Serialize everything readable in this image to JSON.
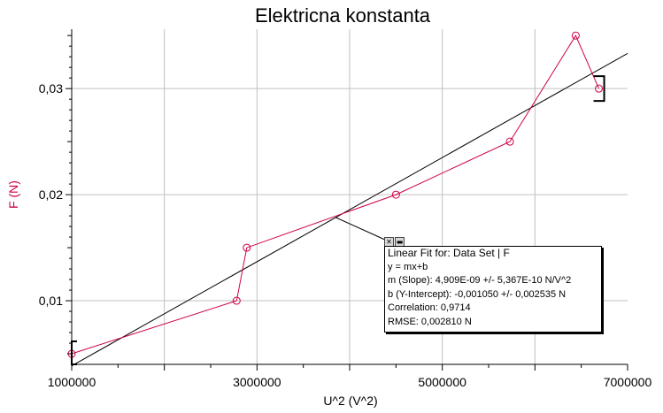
{
  "chart_data": {
    "type": "scatter",
    "title": "Elektricna konstanta",
    "xlabel": "U^2 (V^2)",
    "ylabel": "F (N)",
    "xlim": [
      1000000,
      7000000
    ],
    "ylim": [
      0.004,
      0.0356
    ],
    "x_ticks": [
      1000000,
      3000000,
      5000000,
      7000000
    ],
    "x_tick_labels": [
      "1000000",
      "3000000",
      "5000000",
      "7000000"
    ],
    "y_ticks": [
      0.01,
      0.02,
      0.03
    ],
    "y_tick_labels": [
      "0,01",
      "0,02",
      "0,03"
    ],
    "grid": true,
    "series": [
      {
        "x": [
          1000000,
          2780000,
          2890000,
          4500000,
          5730000,
          6440000,
          6690000
        ],
        "y": [
          0.005,
          0.01,
          0.015,
          0.02,
          0.025,
          0.035,
          0.03
        ],
        "color": "#cc0044",
        "marker": "open-circle",
        "connected": true
      }
    ],
    "fit_line": {
      "slope": 4.909e-09,
      "intercept": -0.00105,
      "color": "#000000"
    },
    "fit_box": {
      "lines": [
        "Linear Fit for: Data Set | F",
        "y = mx+b",
        "m (Slope): 4,909E-09 +/- 5,367E-10 N/V^2",
        "b (Y-Intercept): -0,001050 +/- 0,002535 N",
        "Correlation: 0,9714",
        "RMSE: 0,002810 N"
      ]
    },
    "colors": {
      "data": "#cc0044",
      "fit": "#000000",
      "grid": "#c0c0c0",
      "ylabel": "#cc0044"
    }
  }
}
